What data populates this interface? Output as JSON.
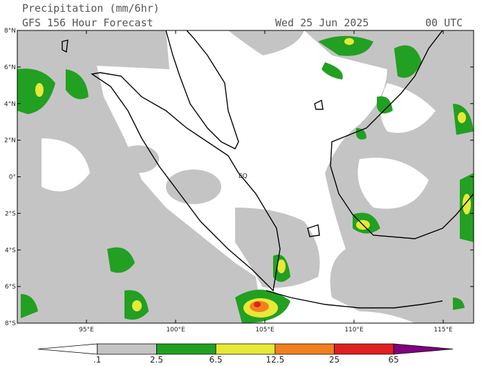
{
  "header": {
    "title": "Precipitation (mm/6hr)",
    "subtitle": "GFS 156 Hour Forecast",
    "date": "Wed 25 Jun 2025",
    "time": "00 UTC"
  },
  "axes": {
    "lat_labels": [
      "8°N",
      "6°N",
      "4°N",
      "2°N",
      "0°",
      "2°S",
      "4°S",
      "6°S",
      "8°S"
    ],
    "lon_labels": [
      "95°E",
      "100°E",
      "105°E",
      "110°E",
      "115°E"
    ]
  },
  "map_labels": {
    "equator": "EQ"
  },
  "colorbar": {
    "labels": [
      ".1",
      "2.5",
      "6.5",
      "12.5",
      "25",
      "65"
    ],
    "colors": [
      "#ffffff",
      "#c4c4c4",
      "#22a022",
      "#e8e836",
      "#f08020",
      "#e02020",
      "#800080"
    ]
  }
}
